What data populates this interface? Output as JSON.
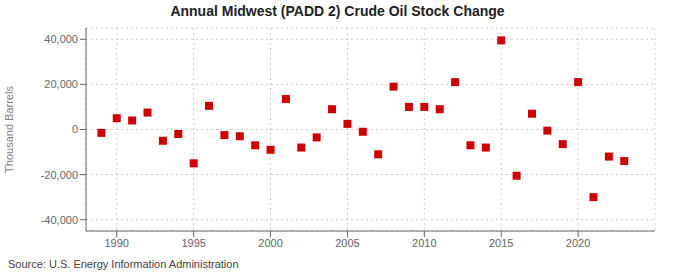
{
  "chart_data": {
    "type": "scatter",
    "title": "Annual Midwest (PADD 2) Crude Oil Stock Change",
    "y_label": "Thousand Barrels",
    "annotations": [
      "Source: U.S. Energy Information Administration"
    ],
    "x": [
      1989,
      1990,
      1991,
      1992,
      1993,
      1994,
      1995,
      1996,
      1997,
      1998,
      1999,
      2000,
      2001,
      2002,
      2003,
      2004,
      2005,
      2006,
      2007,
      2008,
      2009,
      2010,
      2011,
      2012,
      2013,
      2014,
      2015,
      2016,
      2017,
      2018,
      2019,
      2020,
      2021,
      2022,
      2023
    ],
    "values": [
      -1500,
      5000,
      4000,
      7500,
      -5000,
      -2000,
      -15000,
      10500,
      -2500,
      -3000,
      -7000,
      -9000,
      13500,
      -8000,
      -3500,
      9000,
      2500,
      -1000,
      -11000,
      19000,
      10000,
      10000,
      9000,
      21000,
      -7000,
      -8000,
      39500,
      -20500,
      7000,
      -500,
      -6500,
      21000,
      -30000,
      -12000,
      -14000
    ],
    "color": "#cc0000",
    "marker": "square",
    "xlim": [
      1988,
      2025
    ],
    "ylim": [
      -45000,
      45000
    ],
    "yticks": [
      {
        "value": -40000,
        "label": "-40,000"
      },
      {
        "value": -20000,
        "label": "-20,000"
      },
      0,
      {
        "value": 20000,
        "label": "20,000"
      },
      {
        "value": 40000,
        "label": "40,000"
      }
    ],
    "xticks": [
      1990,
      1995,
      2000,
      2005,
      2010,
      2015,
      2020
    ],
    "grid": true
  }
}
